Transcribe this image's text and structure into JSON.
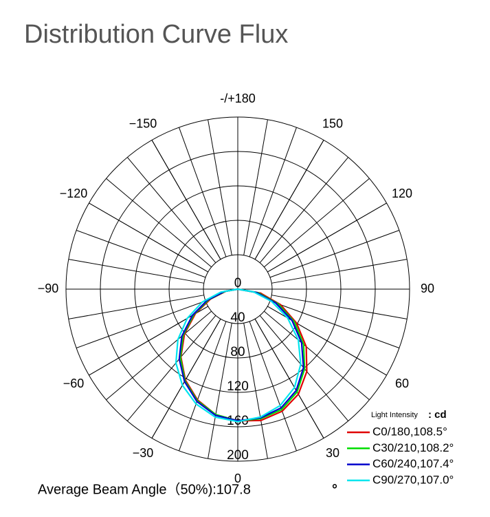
{
  "chart_data": {
    "type": "polar",
    "title": "Distribution Curve Flux",
    "rlim": [
      0,
      200
    ],
    "rticks": [
      0,
      40,
      80,
      120,
      160,
      200
    ],
    "thetaticks": [
      {
        "value": 180,
        "label": "-/+180"
      },
      150,
      120,
      90,
      60,
      30,
      0,
      {
        "value": -30,
        "label": "−30"
      },
      {
        "value": -60,
        "label": "−60"
      },
      {
        "value": -90,
        "label": "−90"
      },
      {
        "value": -120,
        "label": "−120"
      },
      {
        "value": -150,
        "label": "−150"
      }
    ],
    "x": [
      -90,
      -80,
      -70,
      -60,
      -50,
      -40,
      -30,
      -20,
      -10,
      0,
      10,
      20,
      30,
      40,
      50,
      60,
      70,
      80,
      90
    ],
    "series": [
      {
        "name": "C0/180,108.5°",
        "color": "#e00000",
        "values": [
          0,
          14,
          34,
          57,
          81,
          103,
          122,
          137,
          148,
          153,
          155,
          151,
          141,
          125,
          104,
          79,
          53,
          27,
          0
        ]
      },
      {
        "name": "C30/210,108.2°",
        "color": "#00dd00",
        "values": [
          0,
          15,
          36,
          59,
          83,
          104,
          123,
          138,
          148,
          153,
          153,
          149,
          138,
          121,
          100,
          76,
          50,
          24,
          0
        ]
      },
      {
        "name": "C60/240,107.4°",
        "color": "#0000cc",
        "values": [
          0,
          16,
          38,
          61,
          85,
          106,
          124,
          139,
          149,
          153,
          152,
          147,
          136,
          119,
          97,
          73,
          47,
          22,
          0
        ]
      },
      {
        "name": "C90/270,107.0°",
        "color": "#00e5ee",
        "values": [
          0,
          20,
          44,
          68,
          91,
          112,
          129,
          142,
          151,
          154,
          151,
          144,
          132,
          114,
          92,
          67,
          42,
          19,
          0
        ]
      }
    ],
    "legend_title": "Light Intensity",
    "legend_unit": ": cd",
    "annotation": "Average Beam Angle（50%):107.8",
    "annotation_unit": "°"
  }
}
